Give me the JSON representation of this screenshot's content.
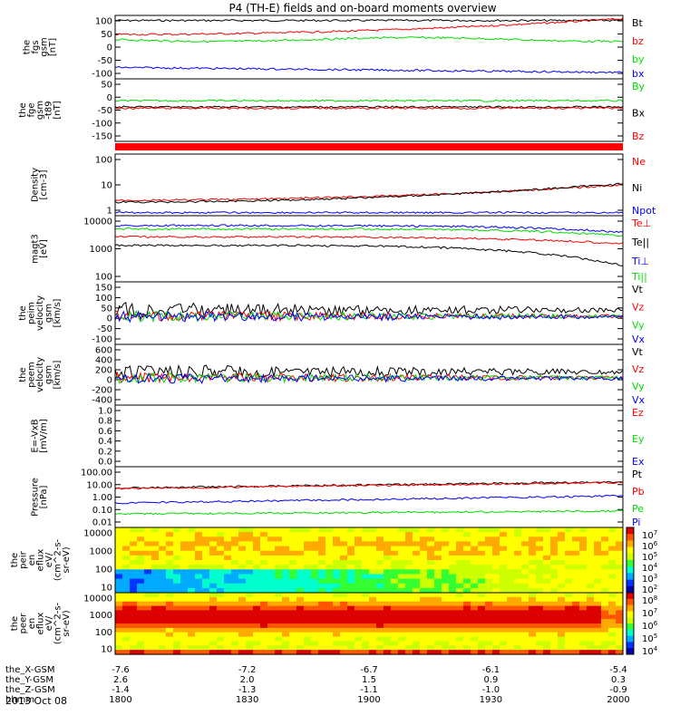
{
  "title": "P4 (TH-E) fields and on-board moments overview",
  "date": "2013 Oct 08",
  "ephemeris": {
    "labels": [
      "the_X-GSM",
      "the_Y-GSM",
      "the_Z-GSM",
      "hhmm"
    ],
    "columns": [
      [
        "-7.6",
        "2.6",
        "-1.4",
        "1800"
      ],
      [
        "-7.2",
        "2.0",
        "-1.3",
        "1830"
      ],
      [
        "-6.7",
        "1.5",
        "-1.1",
        "1900"
      ],
      [
        "-6.1",
        "0.9",
        "-1.0",
        "1930"
      ],
      [
        "-5.4",
        "0.3",
        "-0.9",
        "2000"
      ]
    ]
  },
  "colors": {
    "black": "#000000",
    "red": "#ff0000",
    "green": "#00dd00",
    "blue": "#0000ff"
  },
  "chart_data": [
    {
      "id": "fgs",
      "type": "line",
      "ylabel_lines": [
        "the",
        "fgs",
        "gsm",
        "[nT]"
      ],
      "yticks": [
        "100",
        "50",
        "0",
        "-50",
        "-100"
      ],
      "ylim": [
        -100,
        110
      ],
      "series": [
        {
          "name": "Bt",
          "color": "black"
        },
        {
          "name": "bz",
          "color": "red"
        },
        {
          "name": "by",
          "color": "green"
        },
        {
          "name": "bx",
          "color": "blue"
        }
      ]
    },
    {
      "id": "fgl",
      "type": "line",
      "ylabel_lines": [
        "the",
        "fge",
        "gsm",
        "-t89",
        "[nT]"
      ],
      "yticks": [
        "50",
        "0",
        "-50",
        "-100",
        "-150"
      ],
      "ylim": [
        -180,
        60
      ],
      "series": [
        {
          "name": "By",
          "color": "green"
        },
        {
          "name": "Bx",
          "color": "black"
        },
        {
          "name": "Bz",
          "color": "red"
        }
      ]
    },
    {
      "id": "density",
      "type": "line",
      "ylabel_lines": [
        "Density",
        "[cm-3]"
      ],
      "log": true,
      "yticks": [
        "100",
        "10",
        "1"
      ],
      "ylim": [
        0.1,
        300
      ],
      "series": [
        {
          "name": "Ne",
          "color": "red"
        },
        {
          "name": "Ni",
          "color": "black"
        },
        {
          "name": "Npot",
          "color": "blue"
        }
      ]
    },
    {
      "id": "temp",
      "type": "line",
      "ylabel_lines": [
        "magt3",
        "[eV]"
      ],
      "log": true,
      "yticks": [
        "10000",
        "1000",
        "100"
      ],
      "ylim": [
        20,
        15000
      ],
      "series": [
        {
          "name": "Te⊥",
          "color": "red"
        },
        {
          "name": "Te||",
          "color": "black"
        },
        {
          "name": "Ti⊥",
          "color": "blue"
        },
        {
          "name": "Ti||",
          "color": "green"
        }
      ]
    },
    {
      "id": "velocity_e",
      "type": "line",
      "ylabel_lines": [
        "the",
        "peim",
        "velocity",
        "gsm",
        "[km/s]"
      ],
      "yticks": [
        "150",
        "100",
        "50",
        "0",
        "-50",
        "-100"
      ],
      "ylim": [
        -100,
        150
      ],
      "series": [
        {
          "name": "Vt",
          "color": "black"
        },
        {
          "name": "Vz",
          "color": "red"
        },
        {
          "name": "Vy",
          "color": "green"
        },
        {
          "name": "Vx",
          "color": "blue"
        }
      ]
    },
    {
      "id": "velocity_i",
      "type": "line",
      "ylabel_lines": [
        "the",
        "peem",
        "velocity",
        "gsm",
        "[km/s]"
      ],
      "yticks": [
        "600",
        "400",
        "200",
        "0",
        "-200",
        "-400"
      ],
      "ylim": [
        -450,
        600
      ],
      "series": [
        {
          "name": "Vt",
          "color": "black"
        },
        {
          "name": "Vz",
          "color": "red"
        },
        {
          "name": "Vy",
          "color": "green"
        },
        {
          "name": "Vx",
          "color": "blue"
        }
      ]
    },
    {
      "id": "efield",
      "type": "line",
      "ylabel_lines": [
        "E=-VxB",
        "[mV/m]"
      ],
      "yticks": [
        "1.0",
        "0.8",
        "0.6",
        "0.4",
        "0.2",
        "0.0"
      ],
      "ylim": [
        0,
        1
      ],
      "series": [
        {
          "name": "Ez",
          "color": "red"
        },
        {
          "name": "Ey",
          "color": "green"
        },
        {
          "name": "Ex",
          "color": "blue"
        }
      ]
    },
    {
      "id": "pressure",
      "type": "line",
      "ylabel_lines": [
        "Pressure",
        "[nPa]"
      ],
      "log": true,
      "yticks": [
        "100.00",
        "10.00",
        "1.00",
        "0.10",
        "0.01"
      ],
      "ylim": [
        0.008,
        140
      ],
      "series": [
        {
          "name": "Pt",
          "color": "black"
        },
        {
          "name": "Pb",
          "color": "red"
        },
        {
          "name": "Pe",
          "color": "green"
        },
        {
          "name": "Pi",
          "color": "blue"
        }
      ]
    },
    {
      "id": "ion_spec",
      "type": "heatmap",
      "ylabel_lines": [
        "the",
        "peir",
        "en",
        "eflux",
        "eV/",
        "(cm^2-s-",
        "sr-eV)"
      ],
      "yticks": [
        "10000",
        "1000",
        "100",
        "10"
      ],
      "colorbar_ticks": [
        "10^7",
        "10^6",
        "10^5",
        "10^4",
        "10^3",
        "10^2"
      ]
    },
    {
      "id": "elec_spec",
      "type": "heatmap",
      "ylabel_lines": [
        "the",
        "peer",
        "en",
        "eflux",
        "eV/",
        "(cm^2-s-",
        "sr-eV)"
      ],
      "yticks": [
        "10000",
        "1000",
        "100",
        "10"
      ],
      "colorbar_ticks": [
        "10^8",
        "10^7",
        "10^6",
        "10^5",
        "10^4"
      ]
    }
  ]
}
